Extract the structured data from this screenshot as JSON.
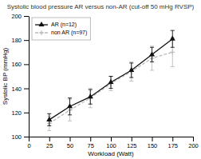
{
  "chart_data": {
    "type": "line",
    "title": "Systolic blood pressure AR versus non-AR (cut-off 50 mHg RVSP)",
    "xlabel": "Workload (Watt)",
    "ylabel": "Systolic BP (mmHg)",
    "x": [
      25,
      50,
      75,
      100,
      125,
      150,
      175
    ],
    "series": [
      {
        "name": "AR (n=12)",
        "color": "#111111",
        "marker": "triangle",
        "line_style": "solid",
        "values": [
          114,
          125,
          133,
          145,
          155,
          168,
          181
        ],
        "errors": [
          5,
          7,
          6,
          5,
          6,
          6,
          7
        ]
      },
      {
        "name": "non AR (n=97)",
        "color": "#bbbbbb",
        "marker": "plus",
        "line_style": "dashed",
        "values": [
          111,
          122,
          132,
          144,
          154,
          165,
          170
        ],
        "errors": [
          6,
          9,
          8,
          6,
          8,
          10,
          12
        ]
      }
    ],
    "xlim": [
      0,
      200
    ],
    "ylim": [
      100,
      200
    ],
    "xticks": [
      0,
      25,
      50,
      75,
      100,
      125,
      150,
      175,
      200
    ],
    "yticks": [
      100,
      120,
      140,
      160,
      180,
      200
    ],
    "legend": "upper left",
    "grid": false
  }
}
